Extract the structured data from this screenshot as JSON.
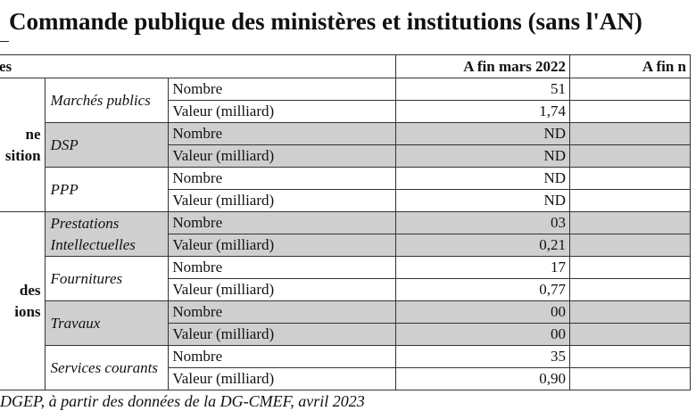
{
  "title": "Commande publique des ministères et institutions (sans l'AN)",
  "header": {
    "col1": "es",
    "col2": "A fin mars 2022",
    "col3": "A fin n"
  },
  "groups": [
    {
      "label_lines": [
        "ne",
        "sition"
      ]
    },
    {
      "label_lines": [
        "des",
        "ions"
      ]
    }
  ],
  "rows": [
    {
      "sub_lines": [
        "Marchés publics"
      ],
      "metrics": [
        {
          "label": "Nombre",
          "value": "51"
        },
        {
          "label": "Valeur (milliard)",
          "value": "1,74"
        }
      ]
    },
    {
      "sub_lines": [
        "DSP"
      ],
      "metrics": [
        {
          "label": "Nombre",
          "value": "ND"
        },
        {
          "label": "Valeur (milliard)",
          "value": "ND"
        }
      ]
    },
    {
      "sub_lines": [
        "PPP"
      ],
      "metrics": [
        {
          "label": "Nombre",
          "value": "ND"
        },
        {
          "label": "Valeur (milliard)",
          "value": "ND"
        }
      ]
    },
    {
      "sub_lines": [
        "Prestations",
        "Intellectuelles"
      ],
      "metrics": [
        {
          "label": "Nombre",
          "value": "03"
        },
        {
          "label": "Valeur (milliard)",
          "value": "0,21"
        }
      ]
    },
    {
      "sub_lines": [
        "Fournitures"
      ],
      "metrics": [
        {
          "label": "Nombre",
          "value": "17"
        },
        {
          "label": "Valeur (milliard)",
          "value": "0,77"
        }
      ]
    },
    {
      "sub_lines": [
        "Travaux"
      ],
      "metrics": [
        {
          "label": "Nombre",
          "value": "00"
        },
        {
          "label": "Valeur (milliard)",
          "value": "00"
        }
      ]
    },
    {
      "sub_lines": [
        "Services courants"
      ],
      "metrics": [
        {
          "label": "Nombre",
          "value": "35"
        },
        {
          "label": "Valeur (milliard)",
          "value": "0,90"
        }
      ]
    }
  ],
  "source": "DGEP, à partir des données de la DG-CMEF, avril 2023"
}
